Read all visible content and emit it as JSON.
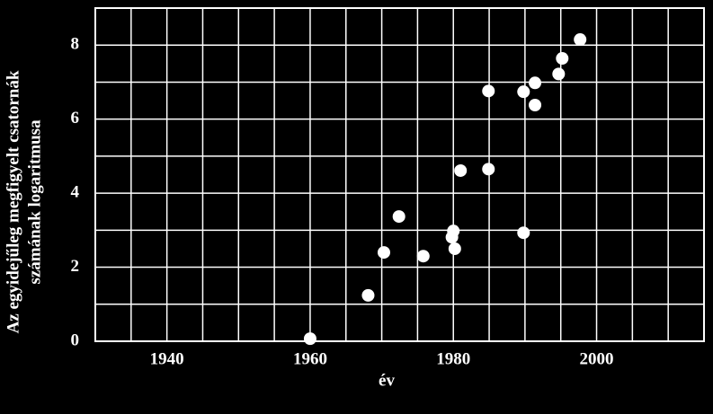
{
  "chart_data": {
    "type": "scatter",
    "xlabel": "év",
    "ylabel": [
      "Az egyidejűleg megfigyelt csatornák",
      "számának logaritmusa"
    ],
    "x": [
      1960,
      1968.1,
      1970.3,
      1972.4,
      1975.8,
      1979.8,
      1980,
      1980.2,
      1981,
      1984.9,
      1984.9,
      1989.8,
      1989.8,
      1991.4,
      1991.4,
      1994.7,
      1995.2,
      1997.7
    ],
    "values": [
      0.07,
      1.24,
      2.4,
      3.37,
      2.3,
      2.81,
      2.98,
      2.5,
      4.61,
      6.76,
      4.65,
      2.93,
      6.74,
      6.98,
      6.38,
      7.22,
      7.64,
      8.15
    ],
    "color": "#ffffff",
    "xlim": [
      1930,
      2015
    ],
    "ylim": [
      0,
      9
    ],
    "xticks": [
      1940,
      1960,
      1980,
      2000
    ],
    "yticks": [
      0,
      2,
      4,
      6,
      8
    ],
    "xgrid": [
      1935,
      1940,
      1945,
      1950,
      1955,
      1960,
      1965,
      1970,
      1975,
      1980,
      1985,
      1990,
      1995,
      2000,
      2005,
      2010
    ],
    "ygrid": [
      1,
      2,
      3,
      4,
      5,
      6,
      7,
      8
    ],
    "grid": true
  }
}
